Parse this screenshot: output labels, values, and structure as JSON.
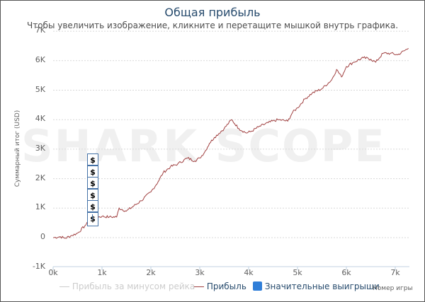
{
  "header": {
    "title": "Общая прибыль",
    "subtitle": "Чтобы увеличить изображение, кликните и перетащите мышкой внутрь графика."
  },
  "watermark": "SHARK SCOPE",
  "legend": {
    "items": [
      {
        "label": "Прибыль за минусом рейка",
        "color": "#cccccc",
        "symbol": "line",
        "enabled": false
      },
      {
        "label": "Прибыль",
        "color": "#a04040",
        "symbol": "line",
        "enabled": true
      },
      {
        "label": "Значительные выигрыши",
        "color": "#2f7ed8",
        "symbol": "square",
        "enabled": true
      }
    ],
    "x_axis_title": "Номер игры"
  },
  "flags": {
    "symbol": "$",
    "count": 6
  },
  "chart_data": {
    "type": "line",
    "title": "Общая прибыль",
    "subtitle": "Чтобы увеличить изображение, кликните и перетащите мышкой внутрь графика.",
    "xlabel": "Номер игры",
    "ylabel": "Суммарный итог (USD)",
    "x_ticks": [
      "0k",
      "1k",
      "2k",
      "3k",
      "4k",
      "5k",
      "6k",
      "7k"
    ],
    "y_ticks": [
      "-1K",
      "0",
      "1K",
      "2K",
      "3K",
      "4K",
      "5K",
      "6K",
      "7K"
    ],
    "xlim": [
      0,
      7300
    ],
    "ylim": [
      -1000,
      7000
    ],
    "grid": true,
    "legend_position": "bottom",
    "series": [
      {
        "name": "Прибыль",
        "color": "#a04040",
        "x": [
          0,
          150,
          250,
          360,
          500,
          650,
          800,
          900,
          1000,
          1150,
          1300,
          1350,
          1500,
          1800,
          2000,
          2150,
          2250,
          2400,
          2550,
          2750,
          2900,
          3000,
          3100,
          3200,
          3300,
          3500,
          3650,
          3800,
          3950,
          4050,
          4200,
          4400,
          4600,
          4800,
          4900,
          5000,
          5150,
          5300,
          5500,
          5700,
          5800,
          5900,
          6000,
          6150,
          6350,
          6500,
          6600,
          6750,
          6900,
          7050,
          7270
        ],
        "y": [
          0,
          30,
          -20,
          60,
          150,
          400,
          650,
          700,
          720,
          700,
          700,
          1000,
          900,
          1250,
          1550,
          1900,
          2200,
          2400,
          2500,
          2700,
          2600,
          2700,
          2900,
          3200,
          3400,
          3700,
          4000,
          3700,
          3550,
          3600,
          3750,
          3900,
          4000,
          3950,
          4250,
          4400,
          4700,
          4900,
          5050,
          5350,
          5700,
          5450,
          5800,
          5950,
          6100,
          6050,
          5950,
          6250,
          6250,
          6200,
          6420
        ]
      },
      {
        "name": "Прибыль за минусом рейка",
        "color": "#cccccc",
        "visible": false,
        "x": [],
        "y": []
      }
    ],
    "markers": {
      "name": "Значительные выигрыши",
      "symbol": "$",
      "x": [
        830,
        830,
        830,
        830,
        830,
        830
      ],
      "count": 6
    }
  }
}
